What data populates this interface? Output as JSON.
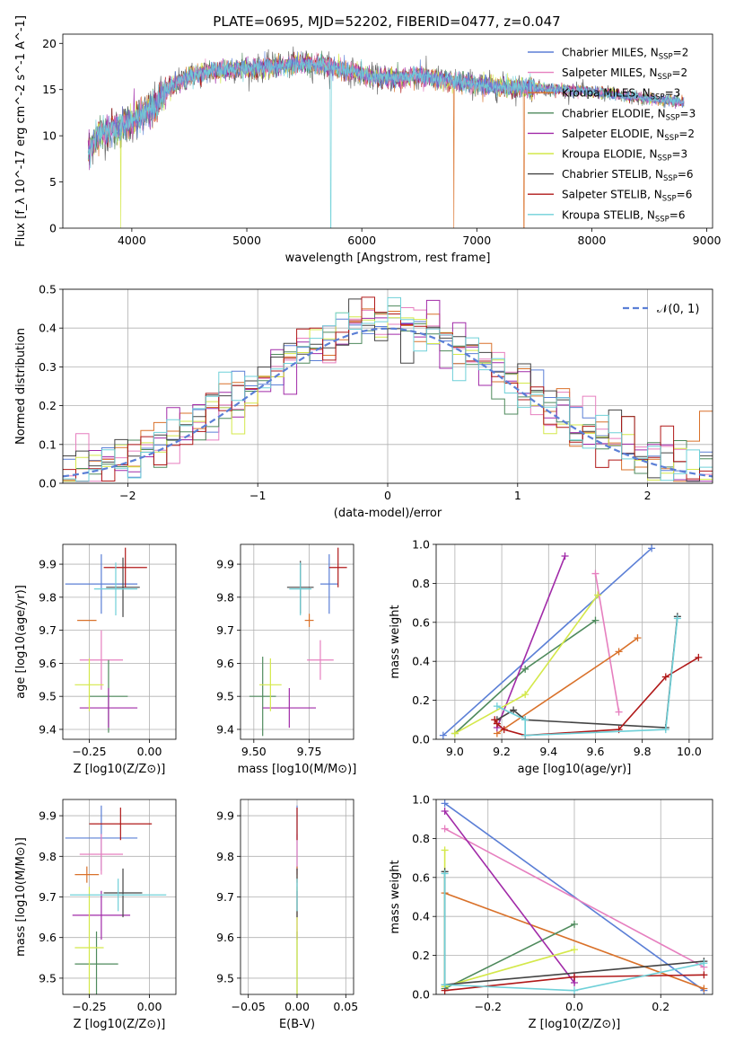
{
  "figure": {
    "title": "PLATE=0695, MJD=52202, FIBERID=0477, z=0.047"
  },
  "models": [
    {
      "name": "Chabrier MILES",
      "nssp": "2",
      "color": "#5b7fd6"
    },
    {
      "name": "Salpeter MILES",
      "nssp": "2",
      "color": "#e67fbf"
    },
    {
      "name": "Kroupa MILES",
      "nssp": "3",
      "color": "#d9712a"
    },
    {
      "name": "Chabrier ELODIE",
      "nssp": "3",
      "color": "#4e8a5c"
    },
    {
      "name": "Salpeter ELODIE",
      "nssp": "2",
      "color": "#a12aa8"
    },
    {
      "name": "Kroupa ELODIE",
      "nssp": "3",
      "color": "#d4e84a"
    },
    {
      "name": "Chabrier STELIB",
      "nssp": "6",
      "color": "#444444"
    },
    {
      "name": "Salpeter STELIB",
      "nssp": "6",
      "color": "#b01818"
    },
    {
      "name": "Kroupa STELIB",
      "nssp": "6",
      "color": "#6fd0d8"
    }
  ],
  "chart_data": [
    {
      "id": "spectrum",
      "type": "line",
      "xlabel": "wavelength [Angstrom, rest frame]",
      "ylabel": "Flux [f_λ 10^-17 erg cm^-2 s^-1 A^-1]",
      "xlim": [
        3400,
        9050
      ],
      "ylim": [
        0,
        21
      ],
      "xticks": [
        4000,
        5000,
        6000,
        7000,
        8000,
        9000
      ],
      "yticks": [
        0,
        5,
        10,
        15,
        20
      ],
      "grid": false,
      "legend": "right",
      "spectrum_continuum": {
        "x": [
          3620,
          3700,
          3800,
          3900,
          4000,
          4100,
          4200,
          4300,
          4400,
          4500,
          4700,
          4900,
          5100,
          5300,
          5500,
          5700,
          5900,
          6100,
          6300,
          6500,
          6700,
          6900,
          7100,
          7300,
          7500,
          7700,
          7900,
          8100,
          8300,
          8500,
          8700,
          8800
        ],
        "y": [
          8.5,
          10.0,
          10.5,
          11.0,
          11.5,
          12.5,
          13.0,
          15.0,
          15.8,
          16.5,
          17.0,
          17.2,
          17.3,
          17.6,
          17.8,
          17.5,
          17.0,
          16.3,
          16.2,
          16.5,
          16.0,
          15.8,
          15.4,
          15.2,
          15.2,
          15.0,
          14.9,
          14.6,
          14.3,
          14.0,
          13.8,
          13.6
        ]
      },
      "spectrum_noise": 1.4,
      "spectrum_gaps": [
        {
          "series": "Kroupa STELIB",
          "x": 5730
        },
        {
          "series": "Kroupa MILES",
          "x": 6800
        },
        {
          "series": "Kroupa MILES",
          "x": 7410
        },
        {
          "series": "Kroupa ELODIE",
          "x": 3905
        }
      ],
      "series": [
        "Chabrier MILES",
        "Salpeter MILES",
        "Kroupa MILES",
        "Chabrier ELODIE",
        "Salpeter ELODIE",
        "Kroupa ELODIE",
        "Chabrier STELIB",
        "Salpeter STELIB",
        "Kroupa STELIB"
      ]
    },
    {
      "id": "residuals",
      "type": "line",
      "xlabel": "(data-model)/error",
      "ylabel": "Normed distribution",
      "xlim": [
        -2.5,
        2.5
      ],
      "ylim": [
        0,
        0.5
      ],
      "xticks": [
        -2,
        -1,
        0,
        1,
        2
      ],
      "yticks": [
        0.0,
        0.1,
        0.2,
        0.3,
        0.4,
        0.5
      ],
      "grid": true,
      "legend": "top-right",
      "legend_label": "𝒩(0, 1)",
      "bin_width": 0.1,
      "gaussian": {
        "mean": 0,
        "sigma": 1,
        "color": "#5b7fd6"
      },
      "histogram_scatter": 0.035
    },
    {
      "id": "age-vs-Z",
      "type": "scatter",
      "xlabel": "Z [log10(Z/Z⊙)]",
      "ylabel": "age [log10(age/yr)]",
      "xlim": [
        -0.36,
        0.11
      ],
      "ylim": [
        9.37,
        9.96
      ],
      "xticks": [
        -0.25,
        0.0
      ],
      "yticks": [
        9.4,
        9.5,
        9.6,
        9.7,
        9.8,
        9.9
      ],
      "grid": true,
      "points": [
        {
          "series": "Chabrier MILES",
          "x": -0.2,
          "y": 9.84,
          "xerr": 0.15,
          "yerr": 0.09
        },
        {
          "series": "Salpeter MILES",
          "x": -0.2,
          "y": 9.61,
          "xerr": 0.09,
          "yerr": 0.09
        },
        {
          "series": "Kroupa MILES",
          "x": -0.26,
          "y": 9.73,
          "xerr": 0.04,
          "yerr": 0.0
        },
        {
          "series": "Chabrier ELODIE",
          "x": -0.17,
          "y": 9.5,
          "xerr": 0.08,
          "yerr": 0.11
        },
        {
          "series": "Salpeter ELODIE",
          "x": -0.17,
          "y": 9.465,
          "xerr": 0.12,
          "yerr": 0.06
        },
        {
          "series": "Kroupa ELODIE",
          "x": -0.25,
          "y": 9.535,
          "xerr": 0.06,
          "yerr": 0.08
        },
        {
          "series": "Chabrier STELIB",
          "x": -0.11,
          "y": 9.83,
          "xerr": 0.07,
          "yerr": 0.09
        },
        {
          "series": "Salpeter STELIB",
          "x": -0.1,
          "y": 9.89,
          "xerr": 0.09,
          "yerr": 0.06
        },
        {
          "series": "Kroupa STELIB",
          "x": -0.14,
          "y": 9.825,
          "xerr": 0.09,
          "yerr": 0.08
        }
      ]
    },
    {
      "id": "age-vs-mass",
      "type": "scatter",
      "xlabel": "mass [log10(M/M⊙)]",
      "ylabel": "",
      "xlim": [
        9.44,
        9.95
      ],
      "ylim": [
        9.37,
        9.96
      ],
      "xticks": [
        9.5,
        9.75
      ],
      "yticks": [
        9.4,
        9.5,
        9.6,
        9.7,
        9.8,
        9.9
      ],
      "grid": true,
      "points": [
        {
          "series": "Chabrier MILES",
          "x": 9.84,
          "y": 9.84,
          "xerr": 0.04,
          "yerr": 0.09
        },
        {
          "series": "Salpeter MILES",
          "x": 9.8,
          "y": 9.61,
          "xerr": 0.06,
          "yerr": 0.06
        },
        {
          "series": "Kroupa MILES",
          "x": 9.75,
          "y": 9.73,
          "xerr": 0.02,
          "yerr": 0.02
        },
        {
          "series": "Chabrier ELODIE",
          "x": 9.54,
          "y": 9.5,
          "xerr": 0.06,
          "yerr": 0.12
        },
        {
          "series": "Salpeter ELODIE",
          "x": 9.66,
          "y": 9.465,
          "xerr": 0.12,
          "yerr": 0.06
        },
        {
          "series": "Kroupa ELODIE",
          "x": 9.575,
          "y": 9.535,
          "xerr": 0.05,
          "yerr": 0.08
        },
        {
          "series": "Chabrier STELIB",
          "x": 9.71,
          "y": 9.83,
          "xerr": 0.06,
          "yerr": 0.08
        },
        {
          "series": "Salpeter STELIB",
          "x": 9.88,
          "y": 9.89,
          "xerr": 0.04,
          "yerr": 0.06
        },
        {
          "series": "Kroupa STELIB",
          "x": 9.71,
          "y": 9.825,
          "xerr": 0.05,
          "yerr": 0.08
        }
      ]
    },
    {
      "id": "massweight-vs-age",
      "type": "line",
      "xlabel": "age  [log10(age/yr)]",
      "ylabel": "mass weight",
      "xlim": [
        8.92,
        10.1
      ],
      "ylim": [
        0,
        1
      ],
      "xticks": [
        9.0,
        9.2,
        9.4,
        9.6,
        9.8,
        10.0
      ],
      "yticks": [
        0.0,
        0.2,
        0.4,
        0.6,
        0.8,
        1.0
      ],
      "grid": true,
      "lines": [
        {
          "series": "Chabrier MILES",
          "x": [
            8.95,
            9.84
          ],
          "y": [
            0.02,
            0.98
          ]
        },
        {
          "series": "Salpeter MILES",
          "x": [
            9.6,
            9.7
          ],
          "y": [
            0.85,
            0.14
          ]
        },
        {
          "series": "Kroupa MILES",
          "x": [
            9.18,
            9.7,
            9.78
          ],
          "y": [
            0.03,
            0.45,
            0.52
          ]
        },
        {
          "series": "Chabrier ELODIE",
          "x": [
            9.0,
            9.3,
            9.6
          ],
          "y": [
            0.03,
            0.36,
            0.61
          ]
        },
        {
          "series": "Salpeter ELODIE",
          "x": [
            9.18,
            9.47
          ],
          "y": [
            0.06,
            0.94
          ]
        },
        {
          "series": "Kroupa ELODIE",
          "x": [
            9.0,
            9.3,
            9.61
          ],
          "y": [
            0.03,
            0.23,
            0.74
          ]
        },
        {
          "series": "Chabrier STELIB",
          "x": [
            9.18,
            9.25,
            9.3,
            9.9,
            9.95
          ],
          "y": [
            0.1,
            0.15,
            0.1,
            0.06,
            0.63
          ]
        },
        {
          "series": "Salpeter STELIB",
          "x": [
            9.17,
            9.18,
            9.21,
            9.3,
            9.7,
            9.9,
            10.04
          ],
          "y": [
            0.1,
            0.08,
            0.05,
            0.02,
            0.05,
            0.32,
            0.42
          ]
        },
        {
          "series": "Kroupa STELIB",
          "x": [
            9.18,
            9.3,
            9.3,
            9.9,
            9.95
          ],
          "y": [
            0.17,
            0.1,
            0.02,
            0.05,
            0.62
          ]
        }
      ]
    },
    {
      "id": "mass-vs-Z",
      "type": "scatter",
      "xlabel": "Z [log10(Z/Z⊙)]",
      "ylabel": "mass [log10(M/M⊙)]",
      "xlim": [
        -0.36,
        0.11
      ],
      "ylim": [
        9.46,
        9.94
      ],
      "xticks": [
        -0.25,
        0.0
      ],
      "yticks": [
        9.5,
        9.6,
        9.7,
        9.8,
        9.9
      ],
      "grid": true,
      "points": [
        {
          "series": "Chabrier MILES",
          "x": -0.2,
          "y": 9.845,
          "xerr": 0.15,
          "yerr": 0.08
        },
        {
          "series": "Salpeter MILES",
          "x": -0.2,
          "y": 9.805,
          "xerr": 0.09,
          "yerr": 0.05
        },
        {
          "series": "Kroupa MILES",
          "x": -0.26,
          "y": 9.755,
          "xerr": 0.05,
          "yerr": 0.02
        },
        {
          "series": "Chabrier ELODIE",
          "x": -0.22,
          "y": 9.535,
          "xerr": 0.09,
          "yerr": 0.08
        },
        {
          "series": "Salpeter ELODIE",
          "x": -0.2,
          "y": 9.655,
          "xerr": 0.12,
          "yerr": 0.06
        },
        {
          "series": "Kroupa ELODIE",
          "x": -0.25,
          "y": 9.575,
          "xerr": 0.06,
          "yerr": 0.15
        },
        {
          "series": "Chabrier STELIB",
          "x": -0.11,
          "y": 9.71,
          "xerr": 0.08,
          "yerr": 0.06
        },
        {
          "series": "Salpeter STELIB",
          "x": -0.12,
          "y": 9.88,
          "xerr": 0.13,
          "yerr": 0.04
        },
        {
          "series": "Kroupa STELIB",
          "x": -0.13,
          "y": 9.705,
          "xerr": 0.2,
          "yerr": 0.04
        }
      ]
    },
    {
      "id": "mass-vs-EBV",
      "type": "scatter",
      "xlabel": "E(B-V)",
      "ylabel": "",
      "xlim": [
        -0.058,
        0.058
      ],
      "ylim": [
        9.46,
        9.94
      ],
      "xticks": [
        -0.05,
        0.0,
        0.05
      ],
      "yticks": [
        9.5,
        9.6,
        9.7,
        9.8,
        9.9
      ],
      "grid": true,
      "points": [
        {
          "series": "Chabrier MILES",
          "x": 0.0,
          "y": 9.845,
          "xerr": 0,
          "yerr": 0.08
        },
        {
          "series": "Salpeter MILES",
          "x": 0.0,
          "y": 9.805,
          "xerr": 0,
          "yerr": 0.05
        },
        {
          "series": "Kroupa MILES",
          "x": 0.0,
          "y": 9.755,
          "xerr": 0,
          "yerr": 0.02
        },
        {
          "series": "Chabrier ELODIE",
          "x": 0.0,
          "y": 9.535,
          "xerr": 0,
          "yerr": 0.08
        },
        {
          "series": "Salpeter ELODIE",
          "x": 0.0,
          "y": 9.655,
          "xerr": 0,
          "yerr": 0.06
        },
        {
          "series": "Kroupa ELODIE",
          "x": 0.0,
          "y": 9.575,
          "xerr": 0,
          "yerr": 0.15
        },
        {
          "series": "Chabrier STELIB",
          "x": 0.0,
          "y": 9.71,
          "xerr": 0,
          "yerr": 0.06
        },
        {
          "series": "Salpeter STELIB",
          "x": 0.0,
          "y": 9.88,
          "xerr": 0,
          "yerr": 0.04
        },
        {
          "series": "Kroupa STELIB",
          "x": 0.0,
          "y": 9.705,
          "xerr": 0,
          "yerr": 0.04
        }
      ]
    },
    {
      "id": "massweight-vs-Z",
      "type": "line",
      "xlabel": "Z [log10(Z/Z⊙)]",
      "ylabel": "mass weight",
      "xlim": [
        -0.32,
        0.32
      ],
      "ylim": [
        0,
        1
      ],
      "xticks": [
        -0.2,
        0.0,
        0.2
      ],
      "yticks": [
        0.0,
        0.2,
        0.4,
        0.6,
        0.8,
        1.0
      ],
      "grid": true,
      "lines": [
        {
          "series": "Chabrier MILES",
          "x": [
            -0.3,
            0.3
          ],
          "y": [
            0.98,
            0.02
          ]
        },
        {
          "series": "Salpeter MILES",
          "x": [
            -0.3,
            0.3
          ],
          "y": [
            0.85,
            0.14
          ]
        },
        {
          "series": "Kroupa MILES",
          "x": [
            -0.3,
            0.3
          ],
          "y": [
            0.52,
            0.03
          ]
        },
        {
          "series": "Chabrier ELODIE",
          "x": [
            -0.3,
            0.0
          ],
          "y": [
            0.03,
            0.36
          ]
        },
        {
          "series": "Salpeter ELODIE",
          "x": [
            -0.3,
            0.0,
            0.0
          ],
          "y": [
            0.94,
            0.06,
            0.09
          ]
        },
        {
          "series": "Kroupa ELODIE",
          "x": [
            -0.3,
            -0.3,
            0.0
          ],
          "y": [
            0.74,
            0.04,
            0.23
          ]
        },
        {
          "series": "Chabrier STELIB",
          "x": [
            -0.3,
            -0.3,
            0.3
          ],
          "y": [
            0.63,
            0.05,
            0.17
          ]
        },
        {
          "series": "Salpeter STELIB",
          "x": [
            -0.3,
            0.0,
            0.3
          ],
          "y": [
            0.02,
            0.09,
            0.1
          ]
        },
        {
          "series": "Kroupa STELIB",
          "x": [
            -0.3,
            -0.3,
            0.0,
            0.3
          ],
          "y": [
            0.62,
            0.05,
            0.02,
            0.16
          ]
        }
      ]
    }
  ]
}
